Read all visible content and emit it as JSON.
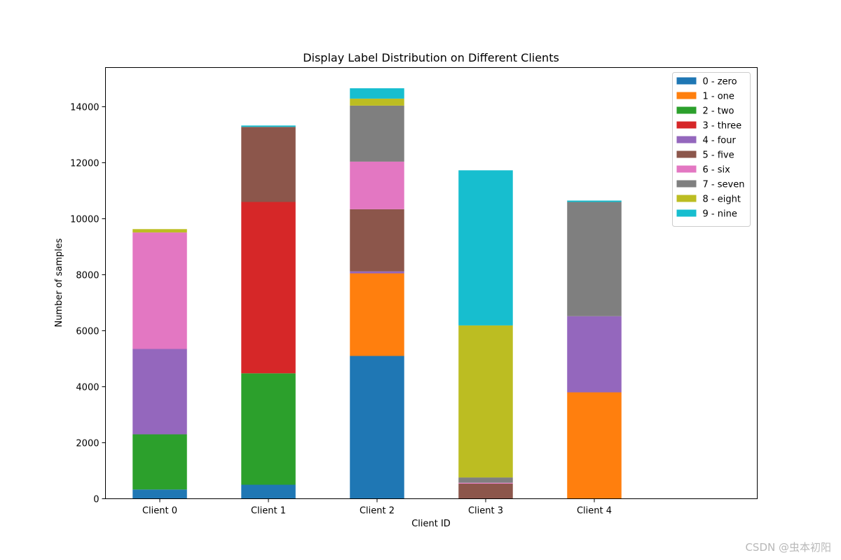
{
  "chart_data": {
    "type": "bar",
    "stacked": true,
    "title": "Display Label Distribution on Different Clients",
    "xlabel": "Client ID",
    "ylabel": "Number of samples",
    "categories": [
      "Client 0",
      "Client 1",
      "Client 2",
      "Client 3",
      "Client 4"
    ],
    "ylim": [
      0,
      15400
    ],
    "yticks": [
      0,
      2000,
      4000,
      6000,
      8000,
      10000,
      12000,
      14000
    ],
    "legend_position": "top-right",
    "grid": false,
    "series": [
      {
        "name": "0 - zero",
        "color": "#1f77b4",
        "values": [
          330,
          500,
          5100,
          0,
          0
        ]
      },
      {
        "name": "1 - one",
        "color": "#ff7f0e",
        "values": [
          0,
          0,
          2950,
          0,
          3800
        ]
      },
      {
        "name": "2 - two",
        "color": "#2ca02c",
        "values": [
          1970,
          3980,
          0,
          0,
          0
        ]
      },
      {
        "name": "3 - three",
        "color": "#d62728",
        "values": [
          0,
          6120,
          0,
          0,
          0
        ]
      },
      {
        "name": "4 - four",
        "color": "#9467bd",
        "values": [
          3050,
          0,
          70,
          0,
          2720
        ]
      },
      {
        "name": "5 - five",
        "color": "#8c564b",
        "values": [
          0,
          2680,
          2220,
          540,
          0
        ]
      },
      {
        "name": "6 - six",
        "color": "#e377c2",
        "values": [
          4160,
          0,
          1700,
          30,
          0
        ]
      },
      {
        "name": "7 - seven",
        "color": "#7f7f7f",
        "values": [
          0,
          0,
          2000,
          190,
          4080
        ]
      },
      {
        "name": "8 - eight",
        "color": "#bcbd22",
        "values": [
          120,
          0,
          250,
          5430,
          0
        ]
      },
      {
        "name": "9 - nine",
        "color": "#17becf",
        "values": [
          0,
          50,
          370,
          5540,
          50
        ]
      }
    ]
  },
  "watermark": "CSDN @虫本初阳"
}
